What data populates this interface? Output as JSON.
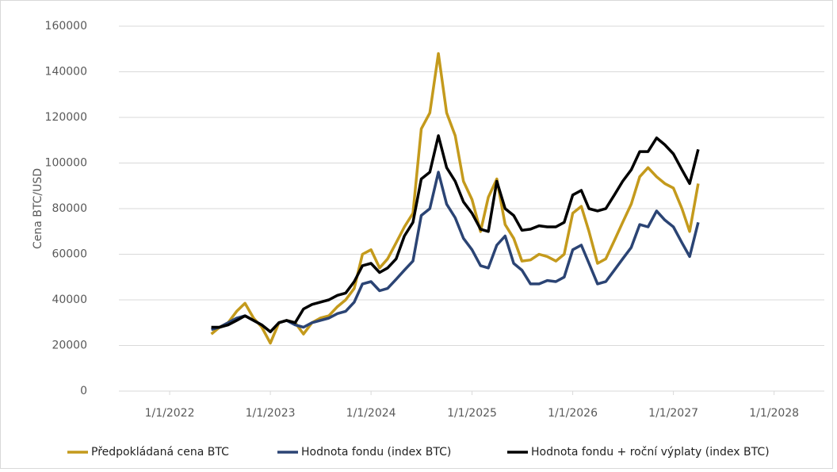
{
  "chart_data": {
    "type": "line",
    "y_label": "Cena BTC/USD",
    "x": [
      "2022-06-01",
      "2022-07-01",
      "2022-08-01",
      "2022-09-01",
      "2022-10-01",
      "2022-11-01",
      "2022-12-01",
      "2023-01-01",
      "2023-02-01",
      "2023-03-01",
      "2023-04-01",
      "2023-05-01",
      "2023-06-01",
      "2023-07-01",
      "2023-08-01",
      "2023-09-01",
      "2023-10-01",
      "2023-11-01",
      "2023-12-01",
      "2024-01-01",
      "2024-02-01",
      "2024-03-01",
      "2024-04-01",
      "2024-05-01",
      "2024-06-01",
      "2024-07-01",
      "2024-08-01",
      "2024-09-01",
      "2024-10-01",
      "2024-11-01",
      "2024-12-01",
      "2025-01-01",
      "2025-02-01",
      "2025-03-01",
      "2025-04-01",
      "2025-05-01",
      "2025-06-01",
      "2025-07-01",
      "2025-08-01",
      "2025-09-01",
      "2025-10-01",
      "2025-11-01",
      "2025-12-01",
      "2026-01-01",
      "2026-02-01",
      "2026-03-01",
      "2026-04-01",
      "2026-05-01",
      "2026-06-01",
      "2026-07-01",
      "2026-08-01",
      "2026-09-01",
      "2026-10-01",
      "2026-11-01",
      "2026-12-01",
      "2027-01-01",
      "2027-02-01",
      "2027-03-01",
      "2027-04-01"
    ],
    "series": [
      {
        "name": "Předpokládaná cena BTC",
        "color": "#c49a1c",
        "values": [
          25000,
          28000,
          30000,
          35000,
          38500,
          32000,
          28000,
          21000,
          30000,
          31000,
          30000,
          25000,
          30000,
          32000,
          33000,
          37000,
          40000,
          45000,
          60000,
          62000,
          54000,
          58000,
          65000,
          72000,
          78000,
          115000,
          122000,
          148000,
          122000,
          112000,
          92000,
          84000,
          70000,
          85000,
          93000,
          73000,
          67000,
          57000,
          57500,
          60000,
          59000,
          57000,
          60000,
          78000,
          81000,
          70000,
          56000,
          58000,
          66000,
          74000,
          82000,
          94000,
          98000,
          94000,
          91000,
          89000,
          80000,
          70000,
          91000
        ]
      },
      {
        "name": "Hodnota fondu (index BTC)",
        "color": "#2b4474",
        "values": [
          27000,
          28000,
          30000,
          32000,
          33000,
          31000,
          29000,
          26000,
          30000,
          31000,
          29000,
          28000,
          30000,
          31000,
          32000,
          34000,
          35000,
          39000,
          47000,
          48000,
          44000,
          45000,
          49000,
          53000,
          57000,
          77000,
          80000,
          96000,
          82000,
          76000,
          67000,
          62000,
          55000,
          54000,
          64000,
          68000,
          56000,
          53000,
          47000,
          47000,
          48500,
          48000,
          50000,
          62000,
          64000,
          56000,
          47000,
          48000,
          53000,
          58000,
          63000,
          73000,
          72000,
          79000,
          75000,
          72000,
          65000,
          59000,
          74000
        ]
      },
      {
        "name": "Hodnota fondu + roční výplaty (index BTC)",
        "color": "#000000",
        "values": [
          28000,
          28000,
          29000,
          31000,
          33000,
          31000,
          29000,
          26000,
          30000,
          31000,
          30000,
          36000,
          38000,
          39000,
          40000,
          42000,
          43000,
          48000,
          55000,
          56000,
          52000,
          54000,
          58000,
          68000,
          74000,
          93000,
          96000,
          112000,
          98000,
          92000,
          83000,
          78000,
          71000,
          70000,
          92000,
          80000,
          77000,
          70500,
          71000,
          72500,
          72000,
          72000,
          74000,
          86000,
          88000,
          80000,
          79000,
          80000,
          86000,
          92000,
          97000,
          105000,
          105000,
          111000,
          108000,
          104000,
          97000,
          91000,
          106000
        ]
      }
    ],
    "xlim": [
      "2021-07-01",
      "2028-07-01"
    ],
    "xticks": [
      {
        "value": "2022-01-01",
        "label": "1/1/2022"
      },
      {
        "value": "2023-01-01",
        "label": "1/1/2023"
      },
      {
        "value": "2024-01-01",
        "label": "1/1/2024"
      },
      {
        "value": "2025-01-01",
        "label": "1/1/2025"
      },
      {
        "value": "2026-01-01",
        "label": "1/1/2026"
      },
      {
        "value": "2027-01-01",
        "label": "1/1/2027"
      },
      {
        "value": "2028-01-01",
        "label": "1/1/2028"
      }
    ],
    "ylim": [
      0,
      160000
    ],
    "yticks": [
      0,
      20000,
      40000,
      60000,
      80000,
      100000,
      120000,
      140000,
      160000
    ],
    "grid": true,
    "legend": "bottom"
  }
}
